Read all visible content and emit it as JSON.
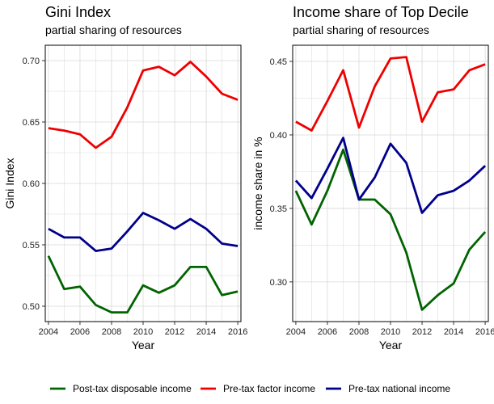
{
  "colors": {
    "post_tax_disposable": "#006400",
    "pre_tax_factor": "#ee0000",
    "pre_tax_national": "#00008b",
    "grid": "#d9d9d9"
  },
  "legend": {
    "placement": "bottom",
    "items": [
      {
        "label": "Post-tax disposable income",
        "color_key": "post_tax_disposable"
      },
      {
        "label": "Pre-tax factor income",
        "color_key": "pre_tax_factor"
      },
      {
        "label": "Pre-tax national income",
        "color_key": "pre_tax_national"
      }
    ]
  },
  "chart_data": [
    {
      "type": "line",
      "title": "Gini Index",
      "subtitle": "partial sharing of resources",
      "xlabel": "Year",
      "ylabel": "Gini Index",
      "grid": true,
      "xlim": [
        2003.8,
        2016.2
      ],
      "ylim": [
        0.4875,
        0.7125
      ],
      "xticks": [
        2004,
        2006,
        2008,
        2010,
        2012,
        2014,
        2016
      ],
      "yticks": [
        0.5,
        0.55,
        0.6,
        0.65,
        0.7
      ],
      "ytick_labels": [
        "0.50",
        "0.55",
        "0.60",
        "0.65",
        "0.70"
      ],
      "x": [
        2004,
        2005,
        2006,
        2007,
        2008,
        2009,
        2010,
        2011,
        2012,
        2013,
        2014,
        2015,
        2016
      ],
      "series": [
        {
          "name": "Post-tax disposable income",
          "color_key": "post_tax_disposable",
          "values": [
            0.541,
            0.514,
            0.516,
            0.501,
            0.495,
            0.495,
            0.517,
            0.511,
            0.517,
            0.532,
            0.532,
            0.509,
            0.512
          ]
        },
        {
          "name": "Pre-tax factor income",
          "color_key": "pre_tax_factor",
          "values": [
            0.645,
            0.643,
            0.64,
            0.629,
            0.638,
            0.662,
            0.692,
            0.695,
            0.688,
            0.699,
            0.687,
            0.673,
            0.668
          ]
        },
        {
          "name": "Pre-tax national income",
          "color_key": "pre_tax_national",
          "values": [
            0.563,
            0.556,
            0.556,
            0.545,
            0.547,
            0.561,
            0.576,
            0.57,
            0.563,
            0.571,
            0.563,
            0.551,
            0.549
          ]
        }
      ]
    },
    {
      "type": "line",
      "title": "Income share of Top Decile",
      "subtitle": "partial sharing of resources",
      "xlabel": "Year",
      "ylabel": "income share in %",
      "grid": true,
      "xlim": [
        2003.8,
        2016.2
      ],
      "ylim": [
        0.273,
        0.461
      ],
      "xticks": [
        2004,
        2006,
        2008,
        2010,
        2012,
        2014,
        2016
      ],
      "yticks": [
        0.3,
        0.35,
        0.4,
        0.45
      ],
      "ytick_labels": [
        "0.30",
        "0.35",
        "0.40",
        "0.45"
      ],
      "x": [
        2004,
        2005,
        2006,
        2007,
        2008,
        2009,
        2010,
        2011,
        2012,
        2013,
        2014,
        2015,
        2016
      ],
      "series": [
        {
          "name": "Post-tax disposable income",
          "color_key": "post_tax_disposable",
          "values": [
            0.362,
            0.339,
            0.362,
            0.39,
            0.356,
            0.356,
            0.346,
            0.32,
            0.281,
            0.291,
            0.299,
            0.322,
            0.334
          ]
        },
        {
          "name": "Pre-tax factor income",
          "color_key": "pre_tax_factor",
          "values": [
            0.409,
            0.403,
            0.423,
            0.444,
            0.405,
            0.433,
            0.452,
            0.453,
            0.409,
            0.429,
            0.431,
            0.444,
            0.448
          ]
        },
        {
          "name": "Pre-tax national income",
          "color_key": "pre_tax_national",
          "values": [
            0.369,
            0.357,
            0.377,
            0.398,
            0.356,
            0.371,
            0.394,
            0.381,
            0.347,
            0.359,
            0.362,
            0.369,
            0.379
          ]
        }
      ]
    }
  ]
}
